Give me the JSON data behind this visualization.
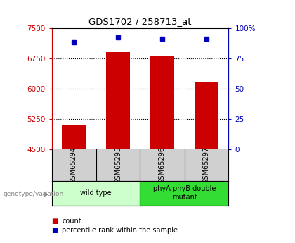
{
  "title": "GDS1702 / 258713_at",
  "samples": [
    "GSM65294",
    "GSM65295",
    "GSM65296",
    "GSM65297"
  ],
  "counts": [
    5100,
    6900,
    6800,
    6150
  ],
  "percentiles": [
    88,
    92,
    91,
    91
  ],
  "ylim_left": [
    4500,
    7500
  ],
  "ylim_right": [
    0,
    100
  ],
  "yticks_left": [
    4500,
    5250,
    6000,
    6750,
    7500
  ],
  "yticks_right": [
    0,
    25,
    50,
    75,
    100
  ],
  "ytick_labels_left": [
    "4500",
    "5250",
    "6000",
    "6750",
    "7500"
  ],
  "ytick_labels_right": [
    "0",
    "25",
    "50",
    "75",
    "100%"
  ],
  "bar_color": "#cc0000",
  "dot_color": "#0000bb",
  "bar_width": 0.55,
  "groups": [
    {
      "label": "wild type",
      "samples": [
        0,
        1
      ],
      "color": "#ccffcc"
    },
    {
      "label": "phyA phyB double\nmutant",
      "samples": [
        2,
        3
      ],
      "color": "#33dd33"
    }
  ],
  "legend_items": [
    {
      "color": "#cc0000",
      "label": "count"
    },
    {
      "color": "#0000bb",
      "label": "percentile rank within the sample"
    }
  ],
  "genotype_label": "genotype/variation",
  "background_color": "#ffffff",
  "plot_bg_color": "#ffffff",
  "grid_color": "#000000",
  "left_axis_color": "#cc0000",
  "right_axis_color": "#0000bb",
  "sample_box_color": "#d0d0d0"
}
